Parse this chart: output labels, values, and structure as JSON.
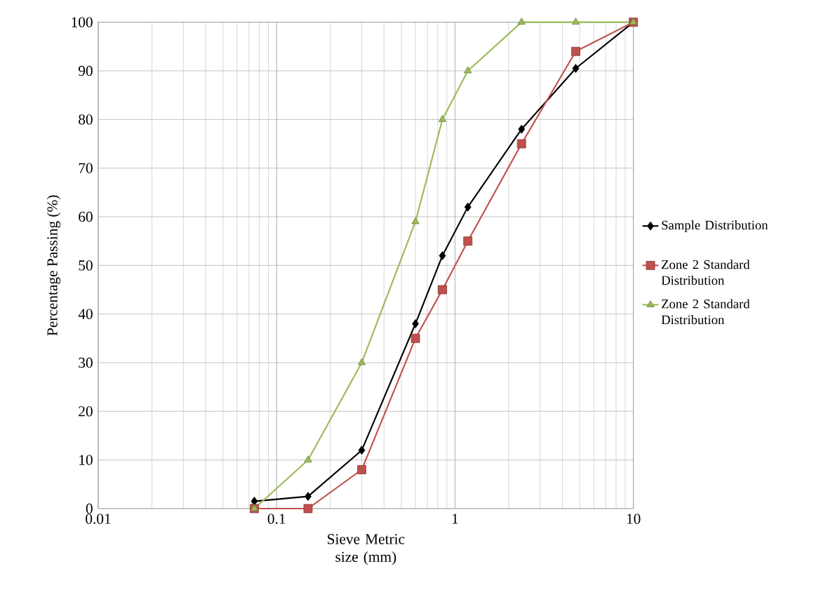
{
  "chart_data": {
    "type": "line",
    "xlabel": "Sieve Metric size (mm)",
    "ylabel": "Percentage Passing (%)",
    "log": "x",
    "xlim": [
      0.01,
      10
    ],
    "xticks": [
      0.01,
      0.1,
      1,
      10
    ],
    "ylim": [
      0,
      100
    ],
    "yticks": [
      0,
      10,
      20,
      30,
      40,
      50,
      60,
      70,
      80,
      90,
      100
    ],
    "grid": true,
    "legend": "right",
    "series": [
      {
        "name": "Sample Distribution",
        "color": "#000000",
        "marker": "diamond",
        "x": [
          0.075,
          0.15,
          0.3,
          0.6,
          0.85,
          1.18,
          2.36,
          4.75,
          10
        ],
        "values": [
          1.5,
          2.5,
          12,
          38,
          52,
          62,
          78,
          90.5,
          100
        ]
      },
      {
        "name": "Zone 2 Standard Distribution",
        "color": "#c0504d",
        "marker": "square",
        "x": [
          0.075,
          0.15,
          0.3,
          0.6,
          0.85,
          1.18,
          2.36,
          4.75,
          10
        ],
        "values": [
          0,
          0,
          8,
          35,
          45,
          55,
          75,
          94,
          100
        ]
      },
      {
        "name": "Zone 2 Standard Distribution",
        "color": "#9bbb59",
        "marker": "triangle",
        "x": [
          0.075,
          0.15,
          0.3,
          0.6,
          0.85,
          1.18,
          2.36,
          4.75,
          10
        ],
        "values": [
          0,
          10,
          30,
          59,
          80,
          90,
          100,
          100,
          100
        ]
      }
    ]
  }
}
